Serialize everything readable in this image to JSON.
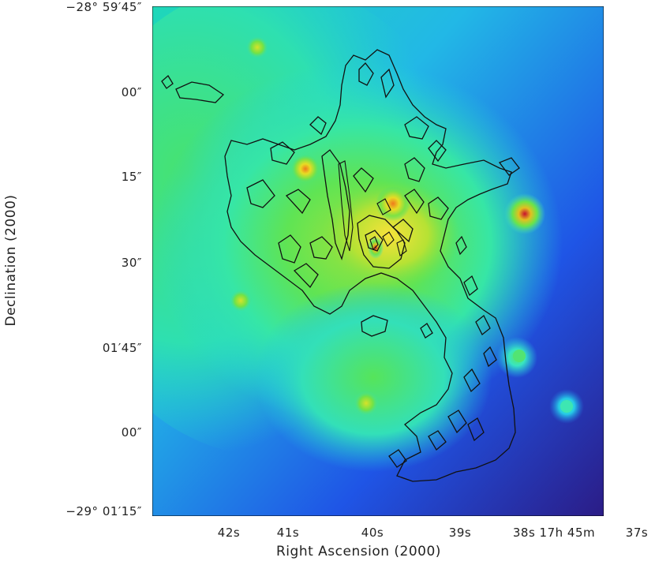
{
  "axes": {
    "xlabel": "Right Ascension (2000)",
    "ylabel": "Declination (2000)",
    "x_ticks": [
      "42s",
      "41s",
      "40s",
      "39s",
      "38s 17h 45m",
      "37s"
    ],
    "y_ticks": [
      "−28° 59′45″",
      "00″",
      "15″",
      "30″",
      "01′45″",
      "00″",
      "−29° 01′15″"
    ]
  },
  "image": {
    "colormap": [
      "#3b1a8a",
      "#1e5ae8",
      "#1fb7e0",
      "#2ee6c6",
      "#4ae86a",
      "#a8e63a",
      "#f2e022",
      "#e8731c",
      "#c8102e"
    ],
    "contour_color": "#111111",
    "sources": 11
  }
}
